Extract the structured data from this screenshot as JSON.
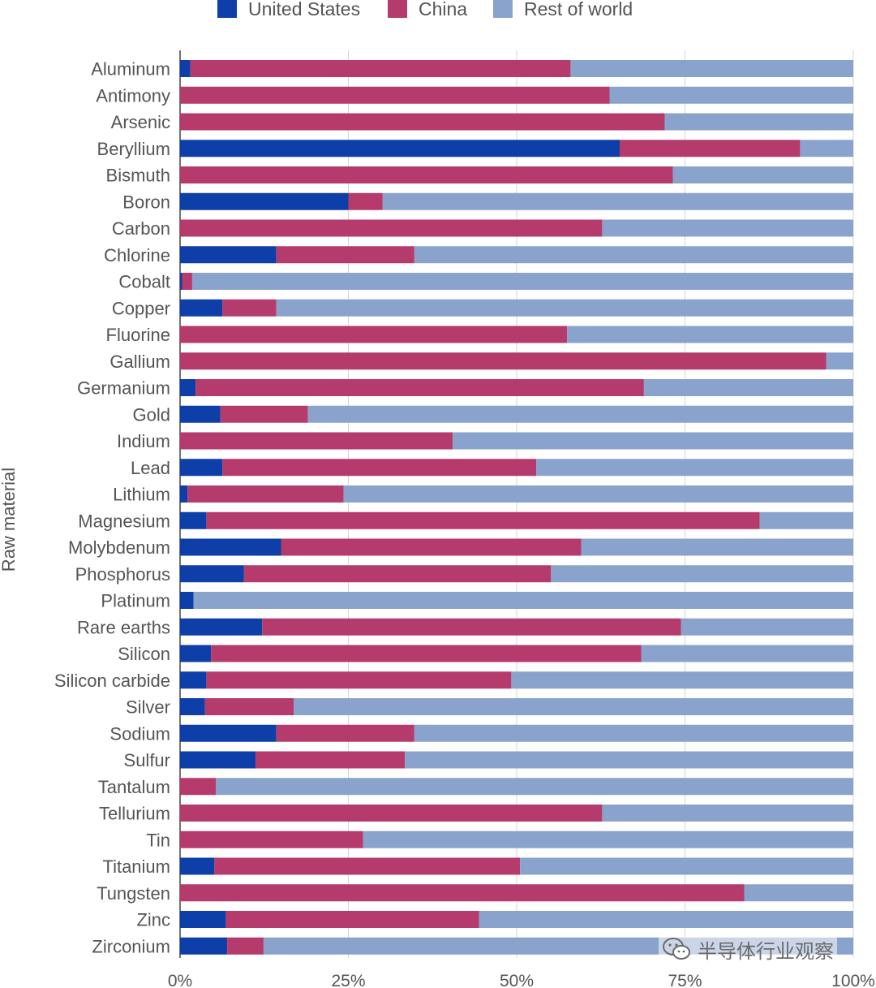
{
  "chart_data": {
    "type": "bar",
    "orientation": "horizontal",
    "stacked": true,
    "ylabel": "Raw material",
    "xlabel": "",
    "xlim": [
      0,
      100
    ],
    "x_ticks": [
      "0%",
      "25%",
      "50%",
      "75%",
      "100%"
    ],
    "grid": true,
    "legend_position": "top",
    "categories": [
      "Aluminum",
      "Antimony",
      "Arsenic",
      "Beryllium",
      "Bismuth",
      "Boron",
      "Carbon",
      "Chlorine",
      "Cobalt",
      "Copper",
      "Fluorine",
      "Gallium",
      "Germanium",
      "Gold",
      "Indium",
      "Lead",
      "Lithium",
      "Magnesium",
      "Molybdenum",
      "Phosphorus",
      "Platinum",
      "Rare earths",
      "Silicon",
      "Silicon carbide",
      "Silver",
      "Sodium",
      "Sulfur",
      "Tantalum",
      "Tellurium",
      "Tin",
      "Titanium",
      "Tungsten",
      "Zinc",
      "Zirconium"
    ],
    "series": [
      {
        "name": "United States",
        "color": "#0e3ea8",
        "values": [
          1.5,
          0,
          0,
          65.3,
          0,
          25,
          0,
          14.3,
          0.3,
          6.3,
          0,
          0,
          2.3,
          6,
          0,
          6.3,
          1.1,
          3.9,
          15,
          9.5,
          2,
          12.2,
          4.6,
          3.9,
          3.7,
          14.3,
          11.2,
          0,
          0,
          0,
          5.1,
          0,
          6.8,
          7
        ]
      },
      {
        "name": "China",
        "color": "#b53b6d",
        "values": [
          56.5,
          63.8,
          72,
          26.8,
          73.2,
          5.1,
          62.7,
          20.5,
          1.5,
          8,
          57.5,
          96,
          66.6,
          13,
          40.5,
          46.6,
          23.2,
          82.2,
          44.6,
          45.6,
          0,
          62.2,
          63.9,
          45.3,
          13.2,
          20.5,
          22.2,
          5.3,
          62.7,
          27.2,
          45.4,
          83.8,
          37.6,
          5.4
        ]
      },
      {
        "name": "Rest of world",
        "color": "#8aa3cc",
        "values": [
          42,
          36.2,
          28,
          7.9,
          26.8,
          69.9,
          37.3,
          65.2,
          98.2,
          85.7,
          42.5,
          4,
          31.1,
          81,
          59.5,
          47.1,
          75.7,
          13.9,
          40.4,
          44.9,
          98,
          25.6,
          31.5,
          50.8,
          83.1,
          65.2,
          66.6,
          94.7,
          37.3,
          72.8,
          49.5,
          16.2,
          55.6,
          87.6
        ]
      }
    ]
  },
  "watermark": {
    "text": "半导体行业观察",
    "icon": "wechat-icon"
  }
}
